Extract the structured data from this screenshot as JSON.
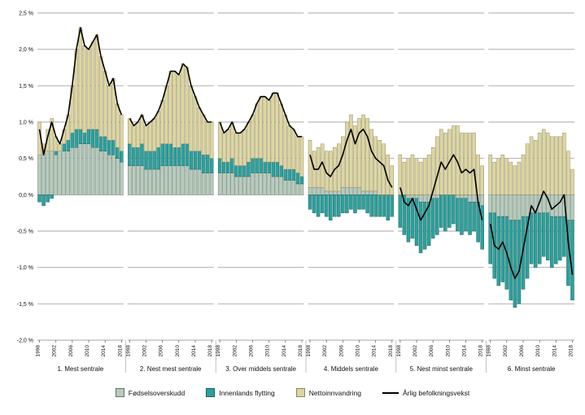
{
  "chart_data": {
    "type": "bar",
    "subtype": "stacked-bars-with-line-overlay",
    "title": "",
    "ylim": [
      -2.0,
      2.5
    ],
    "grid": true,
    "y_ticks": {
      "values": [
        2.5,
        2.0,
        1.5,
        1.0,
        0.5,
        0.0,
        -0.5,
        -1.0,
        -1.5,
        -2.0
      ],
      "labels": [
        "2,5 %",
        "2,0 %",
        "1,5 %",
        "1,0 %",
        "0,5 %",
        "0,0 %",
        "-0,5 %",
        "-1,0 %",
        "-1,5 %",
        "-2,0 %"
      ]
    },
    "years": [
      1998,
      1999,
      2000,
      2001,
      2002,
      2003,
      2004,
      2005,
      2006,
      2007,
      2008,
      2009,
      2010,
      2011,
      2012,
      2013,
      2014,
      2015,
      2016,
      2017,
      2018
    ],
    "tick_years": [
      1998,
      2002,
      2006,
      2010,
      2014,
      2018
    ],
    "series_meta": [
      {
        "key": "fodselsoverskudd",
        "label": "Fødselsoverskudd",
        "color": "#b8ccbd",
        "stroke": "#5f7265"
      },
      {
        "key": "innenlands_flytting",
        "label": "Innenlands flytting",
        "color": "#2fa09c",
        "stroke": "#17615e"
      },
      {
        "key": "nettoinnvandring",
        "label": "Nettoinnvandring",
        "color": "#ddd6a4",
        "stroke": "#8e8657"
      }
    ],
    "line_meta": {
      "label": "Årlig befolkningsvekst",
      "color": "#000000"
    },
    "groups": [
      {
        "label": "1. Mest sentrale",
        "series": {
          "fodselsoverskudd": [
            0.55,
            0.55,
            0.6,
            0.6,
            0.55,
            0.6,
            0.6,
            0.6,
            0.65,
            0.65,
            0.7,
            0.7,
            0.7,
            0.65,
            0.65,
            0.6,
            0.6,
            0.55,
            0.55,
            0.5,
            0.45
          ],
          "innenlands_flytting": [
            -0.1,
            -0.15,
            -0.1,
            -0.05,
            0.05,
            0.0,
            0.1,
            0.15,
            0.2,
            0.25,
            0.2,
            0.15,
            0.2,
            0.25,
            0.25,
            0.2,
            0.2,
            0.2,
            0.2,
            0.15,
            0.15
          ],
          "nettoinnvandring": [
            0.45,
            0.15,
            0.3,
            0.45,
            0.2,
            0.1,
            0.2,
            0.35,
            0.65,
            1.1,
            1.4,
            1.2,
            1.1,
            1.2,
            1.3,
            1.1,
            0.9,
            0.75,
            0.85,
            0.6,
            0.5
          ]
        },
        "line": [
          0.9,
          0.55,
          0.8,
          1.0,
          0.8,
          0.7,
          0.9,
          1.1,
          1.5,
          2.0,
          2.3,
          2.05,
          2.0,
          2.1,
          2.2,
          1.9,
          1.7,
          1.5,
          1.6,
          1.25,
          1.1
        ]
      },
      {
        "label": "2. Nest mest sentrale",
        "series": {
          "fodselsoverskudd": [
            0.4,
            0.4,
            0.4,
            0.4,
            0.35,
            0.35,
            0.35,
            0.35,
            0.4,
            0.4,
            0.4,
            0.4,
            0.4,
            0.4,
            0.4,
            0.35,
            0.35,
            0.35,
            0.3,
            0.3,
            0.3
          ],
          "innenlands_flytting": [
            0.3,
            0.25,
            0.25,
            0.3,
            0.25,
            0.25,
            0.25,
            0.3,
            0.3,
            0.3,
            0.3,
            0.25,
            0.25,
            0.3,
            0.3,
            0.25,
            0.25,
            0.25,
            0.25,
            0.25,
            0.2
          ],
          "nettoinnvandring": [
            0.35,
            0.3,
            0.35,
            0.4,
            0.35,
            0.4,
            0.45,
            0.5,
            0.6,
            0.8,
            1.0,
            1.05,
            1.0,
            1.1,
            1.05,
            0.9,
            0.75,
            0.6,
            0.55,
            0.45,
            0.5
          ]
        },
        "line": [
          1.05,
          0.95,
          1.0,
          1.1,
          0.95,
          1.0,
          1.05,
          1.15,
          1.3,
          1.5,
          1.7,
          1.7,
          1.65,
          1.8,
          1.75,
          1.5,
          1.35,
          1.2,
          1.1,
          1.0,
          1.0
        ]
      },
      {
        "label": "3. Over middels sentrale",
        "series": {
          "fodselsoverskudd": [
            0.3,
            0.3,
            0.3,
            0.3,
            0.25,
            0.25,
            0.25,
            0.25,
            0.3,
            0.3,
            0.3,
            0.3,
            0.3,
            0.25,
            0.25,
            0.25,
            0.2,
            0.2,
            0.2,
            0.15,
            0.15
          ],
          "innenlands_flytting": [
            0.2,
            0.15,
            0.15,
            0.2,
            0.15,
            0.15,
            0.15,
            0.2,
            0.2,
            0.2,
            0.2,
            0.15,
            0.15,
            0.2,
            0.2,
            0.15,
            0.15,
            0.15,
            0.15,
            0.15,
            0.1
          ],
          "nettoinnvandring": [
            0.5,
            0.4,
            0.45,
            0.5,
            0.45,
            0.45,
            0.5,
            0.55,
            0.6,
            0.75,
            0.85,
            0.9,
            0.85,
            0.95,
            0.95,
            0.85,
            0.75,
            0.6,
            0.55,
            0.5,
            0.55
          ]
        },
        "line": [
          1.0,
          0.85,
          0.9,
          1.0,
          0.85,
          0.85,
          0.9,
          1.0,
          1.1,
          1.25,
          1.35,
          1.35,
          1.3,
          1.4,
          1.4,
          1.25,
          1.1,
          0.95,
          0.9,
          0.8,
          0.8
        ]
      },
      {
        "label": "4. Middels sentrale",
        "series": {
          "fodselsoverskudd": [
            0.1,
            0.1,
            0.1,
            0.1,
            0.05,
            0.05,
            0.05,
            0.05,
            0.1,
            0.1,
            0.1,
            0.1,
            0.1,
            0.05,
            0.05,
            0.05,
            0.05,
            0.0,
            0.0,
            0.0,
            0.0
          ],
          "innenlands_flytting": [
            -0.2,
            -0.25,
            -0.3,
            -0.25,
            -0.3,
            -0.35,
            -0.3,
            -0.3,
            -0.25,
            -0.25,
            -0.2,
            -0.25,
            -0.2,
            -0.2,
            -0.25,
            -0.3,
            -0.3,
            -0.3,
            -0.3,
            -0.35,
            -0.3
          ],
          "nettoinnvandring": [
            0.65,
            0.5,
            0.55,
            0.6,
            0.55,
            0.55,
            0.6,
            0.65,
            0.7,
            0.9,
            1.0,
            0.85,
            0.95,
            1.05,
            1.0,
            0.85,
            0.75,
            0.75,
            0.7,
            0.55,
            0.4
          ]
        },
        "line": [
          0.55,
          0.35,
          0.35,
          0.45,
          0.3,
          0.25,
          0.35,
          0.4,
          0.55,
          0.75,
          0.9,
          0.7,
          0.85,
          0.9,
          0.8,
          0.6,
          0.5,
          0.45,
          0.4,
          0.2,
          0.1
        ]
      },
      {
        "label": "5. Nest minst sentrale",
        "series": {
          "fodselsoverskudd": [
            0.0,
            0.0,
            -0.05,
            -0.05,
            -0.05,
            -0.1,
            -0.1,
            -0.1,
            -0.05,
            -0.05,
            0.0,
            0.0,
            0.0,
            0.0,
            -0.05,
            -0.05,
            -0.05,
            -0.1,
            -0.1,
            -0.1,
            -0.15
          ],
          "innenlands_flytting": [
            -0.45,
            -0.55,
            -0.6,
            -0.55,
            -0.65,
            -0.7,
            -0.65,
            -0.6,
            -0.55,
            -0.5,
            -0.45,
            -0.5,
            -0.45,
            -0.4,
            -0.45,
            -0.5,
            -0.45,
            -0.45,
            -0.4,
            -0.55,
            -0.6
          ],
          "nettoinnvandring": [
            0.55,
            0.45,
            0.5,
            0.55,
            0.5,
            0.45,
            0.5,
            0.55,
            0.65,
            0.8,
            0.9,
            0.85,
            0.9,
            0.95,
            0.95,
            0.85,
            0.85,
            0.85,
            0.85,
            0.55,
            0.4
          ]
        },
        "line": [
          0.1,
          -0.1,
          -0.15,
          -0.05,
          -0.2,
          -0.35,
          -0.25,
          -0.15,
          0.05,
          0.25,
          0.45,
          0.35,
          0.45,
          0.55,
          0.45,
          0.3,
          0.35,
          0.3,
          0.35,
          -0.1,
          -0.35
        ]
      },
      {
        "label": "6. Minst sentrale",
        "series": {
          "fodselsoverskudd": [
            -0.25,
            -0.25,
            -0.3,
            -0.3,
            -0.3,
            -0.35,
            -0.35,
            -0.35,
            -0.3,
            -0.3,
            -0.25,
            -0.25,
            -0.25,
            -0.25,
            -0.25,
            -0.3,
            -0.3,
            -0.3,
            -0.3,
            -0.35,
            -0.35
          ],
          "innenlands_flytting": [
            -0.7,
            -0.9,
            -0.95,
            -0.9,
            -1.0,
            -1.1,
            -1.2,
            -1.15,
            -1.0,
            -0.85,
            -0.7,
            -0.75,
            -0.7,
            -0.6,
            -0.65,
            -0.7,
            -0.65,
            -0.6,
            -0.55,
            -0.9,
            -1.1
          ],
          "nettoinnvandring": [
            0.55,
            0.45,
            0.5,
            0.55,
            0.5,
            0.45,
            0.4,
            0.45,
            0.55,
            0.7,
            0.8,
            0.75,
            0.85,
            0.9,
            0.85,
            0.8,
            0.8,
            0.8,
            0.85,
            0.6,
            0.35
          ]
        },
        "line": [
          -0.4,
          -0.7,
          -0.75,
          -0.65,
          -0.8,
          -1.0,
          -1.15,
          -1.05,
          -0.75,
          -0.45,
          -0.15,
          -0.25,
          -0.1,
          0.05,
          -0.05,
          -0.2,
          -0.15,
          -0.1,
          0.0,
          -0.65,
          -1.1
        ]
      }
    ],
    "legend_position": "bottom"
  }
}
